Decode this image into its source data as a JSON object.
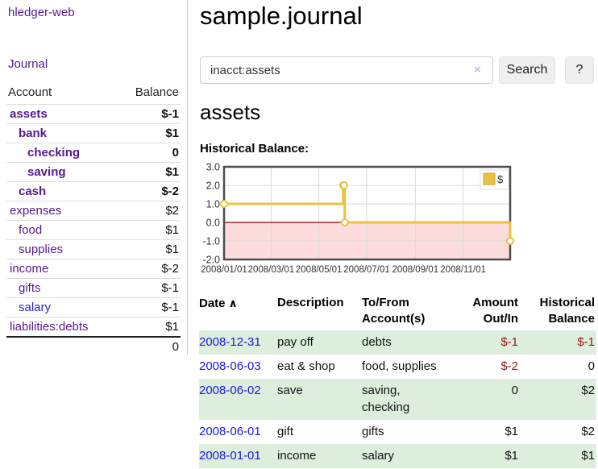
{
  "sidebar": {
    "brand": "hledger-web",
    "journal_link": "Journal",
    "accounts_table": {
      "headers": [
        "Account",
        "Balance"
      ],
      "rows": [
        {
          "account": "assets",
          "balance": "$-1",
          "indent": 0,
          "bold": true,
          "balance_class": "neg-strong"
        },
        {
          "account": "bank",
          "balance": "$1",
          "indent": 1,
          "bold": true,
          "balance_class": ""
        },
        {
          "account": "checking",
          "balance": "0",
          "indent": 2,
          "bold": true,
          "balance_class": ""
        },
        {
          "account": "saving",
          "balance": "$1",
          "indent": 2,
          "bold": true,
          "balance_class": ""
        },
        {
          "account": "cash",
          "balance": "$-2",
          "indent": 1,
          "bold": true,
          "balance_class": "neg-strong"
        },
        {
          "account": "expenses",
          "balance": "$2",
          "indent": 0,
          "bold": false,
          "balance_class": ""
        },
        {
          "account": "food",
          "balance": "$1",
          "indent": 1,
          "bold": false,
          "balance_class": ""
        },
        {
          "account": "supplies",
          "balance": "$1",
          "indent": 1,
          "bold": false,
          "balance_class": ""
        },
        {
          "account": "income",
          "balance": "$-2",
          "indent": 0,
          "bold": false,
          "balance_class": "neg-soft"
        },
        {
          "account": "gifts",
          "balance": "$-1",
          "indent": 1,
          "bold": false,
          "balance_class": "neg-soft"
        },
        {
          "account": "salary",
          "balance": "$-1",
          "indent": 1,
          "bold": false,
          "balance_class": "neg-soft",
          "link_blue": true
        },
        {
          "account": "liabilities:debts",
          "balance": "$1",
          "indent": 0,
          "bold": false,
          "balance_class": ""
        }
      ],
      "total": "0"
    }
  },
  "main": {
    "title": "sample.journal",
    "search": {
      "value": "inacct:assets",
      "clear_icon": "×",
      "button": "Search",
      "help_button": "?"
    },
    "account_heading": "assets",
    "chart_label": "Historical Balance:"
  },
  "chart_data": {
    "type": "line",
    "subtype": "step-after",
    "title": "Historical Balance",
    "ylim": [
      -2.0,
      3.0
    ],
    "x_range_days": [
      0,
      365
    ],
    "y_ticks": [
      "3.0",
      "2.0",
      "1.0",
      "0.0",
      "-1.0",
      "-2.0"
    ],
    "y_tick_values": [
      3,
      2,
      1,
      0,
      -1,
      -2
    ],
    "x_ticks": [
      {
        "label": "2008/01/01",
        "day": 0
      },
      {
        "label": "2008/03/01",
        "day": 60
      },
      {
        "label": "2008/05/01",
        "day": 121
      },
      {
        "label": "2008/07/01",
        "day": 182
      },
      {
        "label": "2008/09/01",
        "day": 244
      },
      {
        "label": "2008/11/01",
        "day": 305
      }
    ],
    "series": [
      {
        "name": "$",
        "color": "#e8c240",
        "marker_fill": "#ffffff",
        "points": [
          {
            "date": "2008-01-01",
            "day": 0,
            "balance": 1
          },
          {
            "date": "2008-06-01",
            "day": 152,
            "balance": 2
          },
          {
            "date": "2008-06-02",
            "day": 153,
            "balance": 2
          },
          {
            "date": "2008-06-03",
            "day": 154,
            "balance": 0
          },
          {
            "date": "2008-12-31",
            "day": 365,
            "balance": -1
          }
        ]
      }
    ],
    "legend": {
      "label": "$",
      "position": "top-right"
    },
    "grid": true,
    "zero_line_color": "#8b0000",
    "negative_region_color": "#fcdcdc",
    "border_color": "#4d4d4d",
    "gridline_color": "#d9d9d9"
  },
  "register_table": {
    "sort_icon": "∧",
    "headers": {
      "date": "Date",
      "description": "Description",
      "accounts": "To/From Account(s)",
      "amount": "Amount Out/In",
      "balance": "Historical Balance"
    },
    "rows": [
      {
        "date": "2008-12-31",
        "description": "pay off",
        "accounts": "debts",
        "amount": "$-1",
        "amount_negative": true,
        "balance": "$-1",
        "balance_negative": true
      },
      {
        "date": "2008-06-03",
        "description": "eat & shop",
        "accounts": "food, supplies",
        "amount": "$-2",
        "amount_negative": true,
        "balance": "0",
        "balance_negative": false
      },
      {
        "date": "2008-06-02",
        "description": "save",
        "accounts": "saving, checking",
        "amount": "0",
        "amount_negative": false,
        "balance": "$2",
        "balance_negative": false
      },
      {
        "date": "2008-06-01",
        "description": "gift",
        "accounts": "gifts",
        "amount": "$1",
        "amount_negative": false,
        "balance": "$2",
        "balance_negative": false
      },
      {
        "date": "2008-01-01",
        "description": "income",
        "accounts": "salary",
        "amount": "$1",
        "amount_negative": false,
        "balance": "$1",
        "balance_negative": false
      }
    ]
  }
}
